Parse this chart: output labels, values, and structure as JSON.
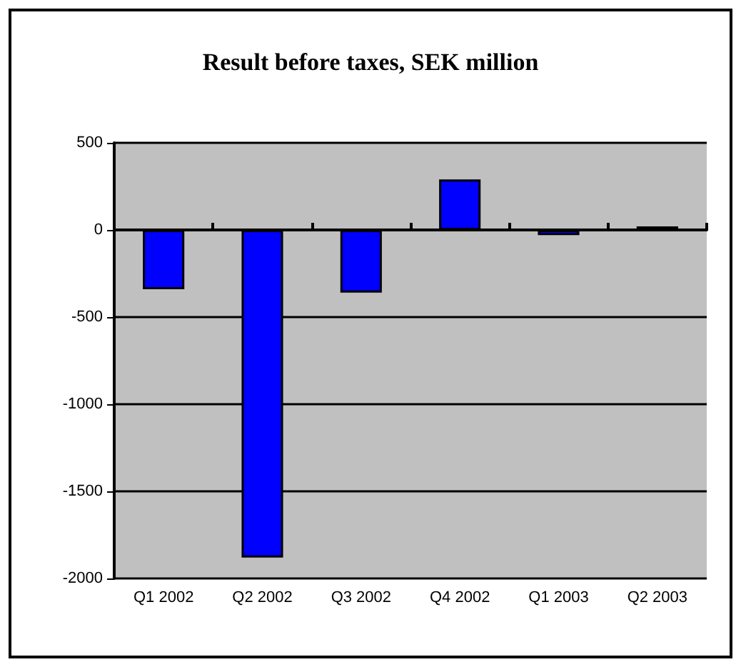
{
  "chart_data": {
    "type": "bar",
    "title": "Result before taxes, SEK million",
    "categories": [
      "Q1 2002",
      "Q2 2002",
      "Q3 2002",
      "Q4 2002",
      "Q1 2003",
      "Q2 2003"
    ],
    "values": [
      -340,
      -1880,
      -360,
      290,
      -30,
      20
    ],
    "color": "#0000ff",
    "ylim": [
      -2000,
      500
    ],
    "yticks": [
      -2000,
      -1500,
      -1000,
      -500,
      0,
      500
    ],
    "grid": "y"
  }
}
